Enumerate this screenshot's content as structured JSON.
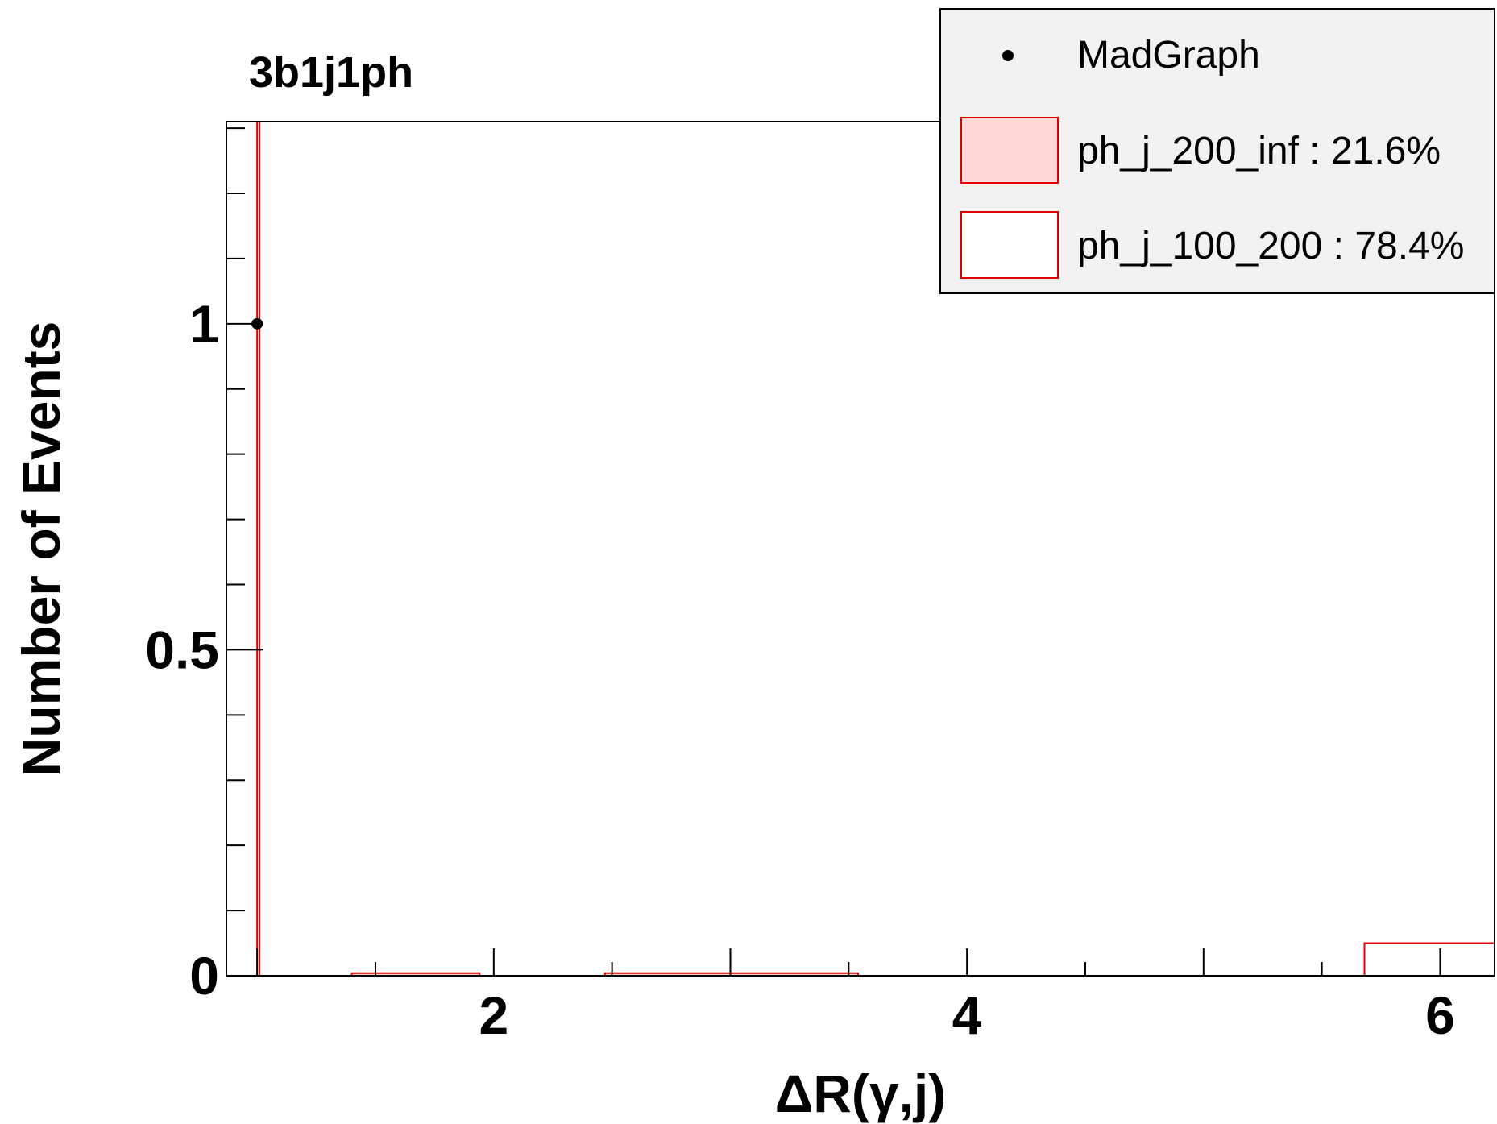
{
  "chart_data": {
    "type": "bar",
    "title": "3b1j1ph",
    "xlabel": "ΔR(γ,j)",
    "ylabel": "Number of Events",
    "xlim": [
      0.87,
      6.23
    ],
    "ylim": [
      0,
      1.31
    ],
    "x_ticks": [
      "2",
      "4",
      "6"
    ],
    "y_ticks": [
      "0",
      "0.5",
      "1"
    ],
    "legend_placement": "top-right",
    "series": [
      {
        "name": "MadGraph",
        "kind": "points",
        "points": [
          {
            "x": 1.0,
            "y": 1.0
          }
        ]
      },
      {
        "name": "ph_j_200_inf : 21.6%",
        "kind": "filled-histogram",
        "fill_color": "#ffd8d8",
        "edge_color": "#e00000",
        "bins": [
          {
            "x0": 1.4,
            "x1": 1.94,
            "y": 0.004
          },
          {
            "x0": 2.47,
            "x1": 3.54,
            "y": 0.004
          }
        ]
      },
      {
        "name": "ph_j_100_200 : 78.4%",
        "kind": "open-histogram",
        "edge_color": "#e00000",
        "bins": [
          {
            "x0": 1.0,
            "x1": 1.01,
            "y": 1.31
          },
          {
            "x0": 5.68,
            "x1": 6.23,
            "y": 0.05
          }
        ]
      }
    ]
  },
  "colors": {
    "axis": "#000000",
    "histogram_line": "#e00000",
    "histogram_fill": "#ffd8d8",
    "legend_background": "#f2f2f2"
  },
  "legend": {
    "entries": [
      {
        "label": "MadGraph",
        "marker": "dot"
      },
      {
        "label": "ph_j_200_inf : 21.6%",
        "marker": "filled-box"
      },
      {
        "label": "ph_j_100_200 : 78.4%",
        "marker": "open-box"
      }
    ]
  }
}
